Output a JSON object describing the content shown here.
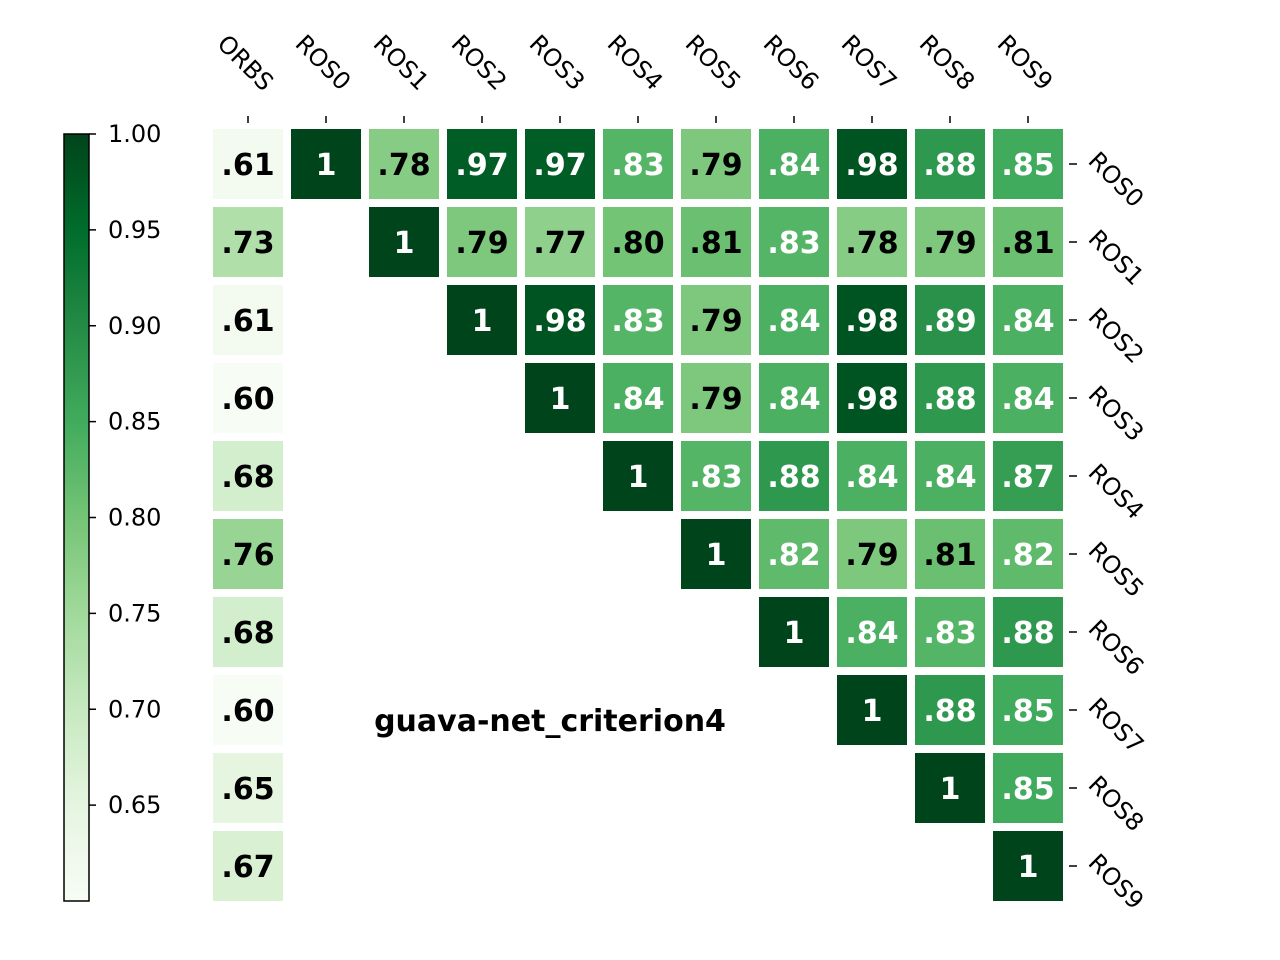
{
  "chart_data": {
    "type": "heatmap",
    "title": "guava-net_criterion4",
    "columns": [
      "ORBS",
      "ROS0",
      "ROS1",
      "ROS2",
      "ROS3",
      "ROS4",
      "ROS5",
      "ROS6",
      "ROS7",
      "ROS8",
      "ROS9"
    ],
    "rows": [
      "ROS0",
      "ROS1",
      "ROS2",
      "ROS3",
      "ROS4",
      "ROS5",
      "ROS6",
      "ROS7",
      "ROS8",
      "ROS9"
    ],
    "values": [
      [
        0.61,
        1,
        0.78,
        0.97,
        0.97,
        0.83,
        0.79,
        0.84,
        0.98,
        0.88,
        0.85
      ],
      [
        0.73,
        null,
        1,
        0.79,
        0.77,
        0.8,
        0.81,
        0.83,
        0.78,
        0.79,
        0.81
      ],
      [
        0.61,
        null,
        null,
        1,
        0.98,
        0.83,
        0.79,
        0.84,
        0.98,
        0.89,
        0.84
      ],
      [
        0.6,
        null,
        null,
        null,
        1,
        0.84,
        0.79,
        0.84,
        0.98,
        0.88,
        0.84
      ],
      [
        0.68,
        null,
        null,
        null,
        null,
        1,
        0.83,
        0.88,
        0.84,
        0.84,
        0.87
      ],
      [
        0.76,
        null,
        null,
        null,
        null,
        null,
        1,
        0.82,
        0.79,
        0.81,
        0.82
      ],
      [
        0.68,
        null,
        null,
        null,
        null,
        null,
        null,
        1,
        0.84,
        0.83,
        0.88
      ],
      [
        0.6,
        null,
        null,
        null,
        null,
        null,
        null,
        null,
        1,
        0.88,
        0.85
      ],
      [
        0.65,
        null,
        null,
        null,
        null,
        null,
        null,
        null,
        null,
        1,
        0.85
      ],
      [
        0.67,
        null,
        null,
        null,
        null,
        null,
        null,
        null,
        null,
        null,
        1
      ]
    ],
    "labels": [
      [
        ".61",
        "1",
        ".78",
        ".97",
        ".97",
        ".83",
        ".79",
        ".84",
        ".98",
        ".88",
        ".85"
      ],
      [
        ".73",
        "",
        "1",
        ".79",
        ".77",
        ".80",
        ".81",
        ".83",
        ".78",
        ".79",
        ".81"
      ],
      [
        ".61",
        "",
        "",
        "1",
        ".98",
        ".83",
        ".79",
        ".84",
        ".98",
        ".89",
        ".84"
      ],
      [
        ".60",
        "",
        "",
        "",
        "1",
        ".84",
        ".79",
        ".84",
        ".98",
        ".88",
        ".84"
      ],
      [
        ".68",
        "",
        "",
        "",
        "",
        "1",
        ".83",
        ".88",
        ".84",
        ".84",
        ".87"
      ],
      [
        ".76",
        "",
        "",
        "",
        "",
        "",
        "1",
        ".82",
        ".79",
        ".81",
        ".82"
      ],
      [
        ".68",
        "",
        "",
        "",
        "",
        "",
        "",
        "1",
        ".84",
        ".83",
        ".88"
      ],
      [
        ".60",
        "",
        "",
        "",
        "",
        "",
        "",
        "",
        "1",
        ".88",
        ".85"
      ],
      [
        ".65",
        "",
        "",
        "",
        "",
        "",
        "",
        "",
        "",
        "1",
        ".85"
      ],
      [
        ".67",
        "",
        "",
        "",
        "",
        "",
        "",
        "",
        "",
        "",
        "1"
      ]
    ],
    "colorbar": {
      "min": 0.6,
      "max": 1.0,
      "ticks": [
        1.0,
        0.95,
        0.9,
        0.85,
        0.8,
        0.75,
        0.7,
        0.65
      ],
      "tick_labels": [
        "1.00",
        "0.95",
        "0.90",
        "0.85",
        "0.80",
        "0.75",
        "0.70",
        "0.65"
      ],
      "colormap": "Greens",
      "placement": "left"
    },
    "x_tick_position": "top",
    "y_tick_position": "right"
  },
  "colors": {
    "greens": [
      "#f7fcf5",
      "#e5f5e0",
      "#c7e9c0",
      "#a1d99b",
      "#74c476",
      "#41ab5d",
      "#238b45",
      "#006d2c",
      "#00441b"
    ],
    "background": "#ffffff"
  }
}
